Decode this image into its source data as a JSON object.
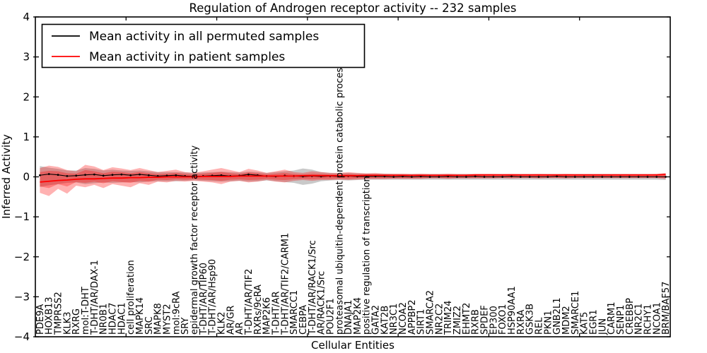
{
  "chart_data": {
    "type": "line",
    "title": "Regulation of Androgen receptor activity -- 232 samples",
    "xlabel": "Cellular Entities",
    "ylabel": "Inferred Activity",
    "ylim": [
      -4,
      4
    ],
    "yticks": [
      4,
      3,
      2,
      1,
      0,
      -1,
      -2,
      -3,
      -4
    ],
    "ytick_labels": [
      "4",
      "3",
      "2",
      "1",
      "0",
      "−1",
      "−2",
      "−3",
      "−4"
    ],
    "xtick_positions": [
      10,
      20,
      30,
      40,
      50,
      60
    ],
    "grid": false,
    "legend_position": "upper left",
    "legend": [
      {
        "label": "Mean activity in all permuted samples",
        "color": "#000000"
      },
      {
        "label": "Mean activity in patient samples",
        "color": "#ff0000"
      }
    ],
    "categories": [
      "PDE9A",
      "HOXB13",
      "TMPRSS2",
      "KLK3",
      "RXRG",
      "mol:T-DHT",
      "T-DHT/AR/DAX-1",
      "NR0B1",
      "HDAC7",
      "HDAC1",
      "cell proliferation",
      "MAPK14",
      "SRC",
      "MAPK8",
      "MYST2",
      "mol:9cRA",
      "SRY",
      "epidermal growth factor receptor activity",
      "T-DHT/AR/TIP60",
      "T-DHT/AR/Hsp90",
      "KLK2",
      "AR/GR",
      "AR",
      "T-DHT/AR/TIF2",
      "RXRs/9cRA",
      "MAP2K6",
      "T-DHT/AR",
      "T-DHT/AR/TIF2/CARM1",
      "SMARCC1",
      "CEBPA",
      "T-DHT/AR/RACK1/Src",
      "AR/RACK1/Src",
      "POU2F1",
      "proteasomal ubiquitin-dependent protein catabolic process",
      "DNAJA1",
      "MAP2K4",
      "positive regulation of transcription",
      "GATA2",
      "KAT2B",
      "NR3C1",
      "NCOA2",
      "APPBP2",
      "SIRT1",
      "SMARCA2",
      "NR2C2",
      "TRIM24",
      "ZMIZ2",
      "EHMT2",
      "RXRB",
      "SPDEF",
      "EP300",
      "FOXO1",
      "HSP90AA1",
      "RXRA",
      "GSK3B",
      "REL",
      "PKN1",
      "GNB2L1",
      "MDM2",
      "SMARCE1",
      "KAT5",
      "EGR1",
      "JUN",
      "CARM1",
      "SENP1",
      "CREBBP",
      "NR2C1",
      "RCHY1",
      "NCOA1",
      "BRM/BAF57"
    ],
    "series": [
      {
        "name": "Mean activity in all permuted samples",
        "color": "#000000",
        "style": "line-with-dot-markers",
        "values": [
          0.04,
          0.07,
          0.05,
          0.02,
          0.03,
          0.05,
          0.06,
          0.03,
          0.05,
          0.06,
          0.04,
          0.06,
          0.04,
          0.02,
          0.03,
          0.04,
          0.02,
          0.01,
          0.02,
          0.03,
          0.04,
          0.02,
          0.03,
          0.06,
          0.04,
          0.02,
          0.01,
          0.03,
          0.02,
          0.01,
          0.02,
          0.01,
          0.02,
          0.01,
          0.02,
          0.01,
          0.01,
          0.01,
          0.01,
          0.0,
          0.01,
          0.0,
          0.01,
          0.0,
          0.0,
          0.01,
          0.0,
          0.0,
          0.01,
          0.0,
          0.0,
          0.0,
          0.01,
          0.0,
          0.0,
          0.0,
          0.0,
          0.01,
          0.0,
          0.0,
          0.0,
          0.0,
          0.0,
          0.0,
          0.0,
          0.0,
          0.0,
          0.0,
          0.0,
          0.0
        ]
      },
      {
        "name": "Mean activity in patient samples",
        "color": "#ff0000",
        "style": "line",
        "values": [
          -0.13,
          -0.11,
          -0.09,
          -0.08,
          -0.06,
          -0.05,
          -0.05,
          -0.04,
          -0.03,
          -0.03,
          -0.02,
          -0.02,
          -0.01,
          -0.01,
          0.0,
          0.0,
          0.0,
          0.0,
          0.01,
          0.01,
          0.01,
          0.01,
          0.02,
          0.02,
          0.02,
          0.02,
          0.02,
          0.02,
          0.02,
          0.03,
          0.03,
          0.03,
          0.03,
          0.03,
          0.03,
          0.03,
          0.04,
          0.04,
          0.04,
          0.04,
          0.04,
          0.04,
          0.04,
          0.04,
          0.04,
          0.04,
          0.04,
          0.04,
          0.05,
          0.05,
          0.05,
          0.05,
          0.05,
          0.05,
          0.05,
          0.05,
          0.05,
          0.05,
          0.05,
          0.05,
          0.05,
          0.05,
          0.05,
          0.05,
          0.05,
          0.05,
          0.05,
          0.05,
          0.05,
          0.06
        ]
      }
    ],
    "bands": [
      {
        "name": "permuted-samples-band",
        "color": "rgba(120,120,120,0.40)",
        "upper": [
          0.27,
          0.23,
          0.2,
          0.16,
          0.16,
          0.22,
          0.2,
          0.16,
          0.18,
          0.16,
          0.15,
          0.16,
          0.14,
          0.12,
          0.12,
          0.12,
          0.11,
          0.1,
          0.11,
          0.12,
          0.13,
          0.12,
          0.11,
          0.13,
          0.12,
          0.1,
          0.12,
          0.14,
          0.16,
          0.21,
          0.18,
          0.12,
          0.1,
          0.09,
          0.1,
          0.09,
          0.08,
          0.08,
          0.08,
          0.07,
          0.07,
          0.07,
          0.07,
          0.07,
          0.07,
          0.07,
          0.07,
          0.07,
          0.07,
          0.07,
          0.07,
          0.07,
          0.07,
          0.07,
          0.07,
          0.07,
          0.07,
          0.07,
          0.07,
          0.07,
          0.07,
          0.07,
          0.07,
          0.07,
          0.07,
          0.07,
          0.07,
          0.07,
          0.07,
          0.08
        ],
        "lower": [
          -0.25,
          -0.21,
          -0.18,
          -0.15,
          -0.14,
          -0.18,
          -0.16,
          -0.14,
          -0.15,
          -0.14,
          -0.13,
          -0.14,
          -0.12,
          -0.11,
          -0.11,
          -0.11,
          -0.1,
          -0.09,
          -0.1,
          -0.11,
          -0.12,
          -0.11,
          -0.1,
          -0.12,
          -0.11,
          -0.09,
          -0.11,
          -0.13,
          -0.15,
          -0.2,
          -0.17,
          -0.11,
          -0.09,
          -0.08,
          -0.09,
          -0.08,
          -0.07,
          -0.07,
          -0.07,
          -0.07,
          -0.07,
          -0.07,
          -0.07,
          -0.07,
          -0.07,
          -0.07,
          -0.07,
          -0.07,
          -0.07,
          -0.07,
          -0.07,
          -0.07,
          -0.07,
          -0.07,
          -0.07,
          -0.07,
          -0.07,
          -0.07,
          -0.07,
          -0.07,
          -0.07,
          -0.07,
          -0.07,
          -0.07,
          -0.07,
          -0.07,
          -0.07,
          -0.07,
          -0.07,
          -0.08
        ]
      },
      {
        "name": "patient-samples-band-outer",
        "color": "rgba(255,0,0,0.30)",
        "upper": [
          0.22,
          0.28,
          0.25,
          0.17,
          0.14,
          0.3,
          0.26,
          0.17,
          0.24,
          0.21,
          0.17,
          0.22,
          0.17,
          0.12,
          0.15,
          0.18,
          0.12,
          0.1,
          0.14,
          0.18,
          0.22,
          0.17,
          0.12,
          0.2,
          0.16,
          0.1,
          0.14,
          0.18,
          0.12,
          0.1,
          0.14,
          0.12,
          0.1,
          0.1,
          0.12,
          0.1,
          0.09,
          0.1,
          0.08,
          0.08,
          0.08,
          0.07,
          0.08,
          0.07,
          0.07,
          0.08,
          0.07,
          0.07,
          0.07,
          0.07,
          0.07,
          0.06,
          0.07,
          0.06,
          0.06,
          0.07,
          0.06,
          0.06,
          0.07,
          0.06,
          0.06,
          0.06,
          0.06,
          0.06,
          0.06,
          0.06,
          0.06,
          0.06,
          0.07,
          0.1
        ],
        "lower": [
          -0.4,
          -0.48,
          -0.3,
          -0.42,
          -0.22,
          -0.26,
          -0.2,
          -0.28,
          -0.18,
          -0.22,
          -0.26,
          -0.16,
          -0.2,
          -0.12,
          -0.14,
          -0.1,
          -0.12,
          -0.1,
          -0.12,
          -0.14,
          -0.18,
          -0.12,
          -0.1,
          -0.14,
          -0.12,
          -0.08,
          -0.12,
          -0.14,
          -0.1,
          -0.08,
          -0.1,
          -0.08,
          -0.08,
          -0.07,
          -0.08,
          -0.07,
          -0.06,
          -0.06,
          -0.06,
          -0.05,
          -0.05,
          -0.05,
          -0.05,
          -0.04,
          -0.04,
          -0.05,
          -0.04,
          -0.04,
          -0.04,
          -0.04,
          -0.04,
          -0.03,
          -0.04,
          -0.03,
          -0.03,
          -0.04,
          -0.03,
          -0.03,
          -0.04,
          -0.03,
          -0.03,
          -0.03,
          -0.03,
          -0.03,
          -0.03,
          -0.03,
          -0.03,
          -0.03,
          -0.03,
          -0.05
        ]
      },
      {
        "name": "patient-samples-band-inner",
        "color": "rgba(255,0,0,0.30)",
        "upper": [
          0.12,
          0.15,
          0.14,
          0.09,
          0.08,
          0.17,
          0.14,
          0.09,
          0.13,
          0.12,
          0.09,
          0.12,
          0.09,
          0.07,
          0.08,
          0.1,
          0.07,
          0.06,
          0.08,
          0.1,
          0.12,
          0.09,
          0.07,
          0.11,
          0.09,
          0.06,
          0.08,
          0.1,
          0.07,
          0.06,
          0.08,
          0.07,
          0.06,
          0.06,
          0.07,
          0.06,
          0.06,
          0.06,
          0.05,
          0.05,
          0.05,
          0.05,
          0.05,
          0.05,
          0.05,
          0.05,
          0.05,
          0.05,
          0.05,
          0.05,
          0.05,
          0.04,
          0.05,
          0.04,
          0.04,
          0.05,
          0.04,
          0.04,
          0.05,
          0.04,
          0.04,
          0.04,
          0.04,
          0.04,
          0.04,
          0.04,
          0.04,
          0.04,
          0.05,
          0.07
        ],
        "lower": [
          -0.24,
          -0.28,
          -0.18,
          -0.24,
          -0.13,
          -0.15,
          -0.12,
          -0.16,
          -0.11,
          -0.13,
          -0.15,
          -0.1,
          -0.12,
          -0.07,
          -0.08,
          -0.06,
          -0.07,
          -0.06,
          -0.07,
          -0.08,
          -0.1,
          -0.07,
          -0.06,
          -0.08,
          -0.07,
          -0.05,
          -0.07,
          -0.08,
          -0.06,
          -0.05,
          -0.06,
          -0.05,
          -0.05,
          -0.04,
          -0.05,
          -0.04,
          -0.03,
          -0.03,
          -0.03,
          -0.03,
          -0.03,
          -0.03,
          -0.03,
          -0.02,
          -0.02,
          -0.03,
          -0.02,
          -0.02,
          -0.02,
          -0.02,
          -0.02,
          -0.02,
          -0.02,
          -0.02,
          -0.02,
          -0.02,
          -0.02,
          -0.02,
          -0.02,
          -0.02,
          -0.02,
          -0.02,
          -0.02,
          -0.02,
          -0.02,
          -0.02,
          -0.02,
          -0.02,
          -0.02,
          -0.03
        ]
      }
    ]
  }
}
